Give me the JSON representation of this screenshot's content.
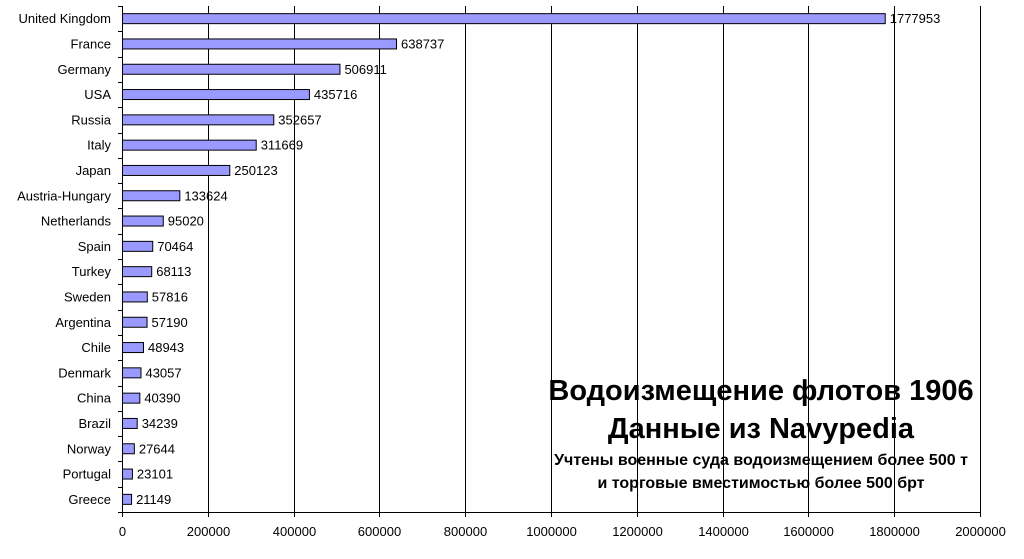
{
  "chart_data": {
    "type": "bar",
    "orientation": "horizontal",
    "categories": [
      "United Kingdom",
      "France",
      "Germany",
      "USA",
      "Russia",
      "Italy",
      "Japan",
      "Austria-Hungary",
      "Netherlands",
      "Spain",
      "Turkey",
      "Sweden",
      "Argentina",
      "Chile",
      "Denmark",
      "China",
      "Brazil",
      "Norway",
      "Portugal",
      "Greece"
    ],
    "values": [
      1777953,
      638737,
      506911,
      435716,
      352657,
      311669,
      250123,
      133624,
      95020,
      70464,
      68113,
      57816,
      57190,
      48943,
      43057,
      40390,
      34239,
      27644,
      23101,
      21149
    ],
    "value_labels": [
      "1777953",
      "638737",
      "506911",
      "435716",
      "352657",
      "311669",
      "250123",
      "133624",
      "95020",
      "70464",
      "68113",
      "57816",
      "57190",
      "48943",
      "43057",
      "40390",
      "34239",
      "27644",
      "23101",
      "21149"
    ],
    "xlim": [
      0,
      2000000
    ],
    "x_ticks": [
      0,
      200000,
      400000,
      600000,
      800000,
      1000000,
      1200000,
      1400000,
      1600000,
      1800000,
      2000000
    ],
    "x_tick_labels": [
      "0",
      "200000",
      "400000",
      "600000",
      "800000",
      "1000000",
      "1200000",
      "1400000",
      "1600000",
      "1800000",
      "2000000"
    ],
    "grid": "vertical",
    "bar_color": "#9999ff",
    "bar_border": "#000000",
    "title": "Водоизмещение флотов 1906",
    "subtitle": "Данные из Navypedia",
    "note_line1": "Учтены военные суда водоизмещением более 500 т",
    "note_line2": "и торговые вместимостью более 500 брт",
    "xlabel": "",
    "ylabel": ""
  }
}
